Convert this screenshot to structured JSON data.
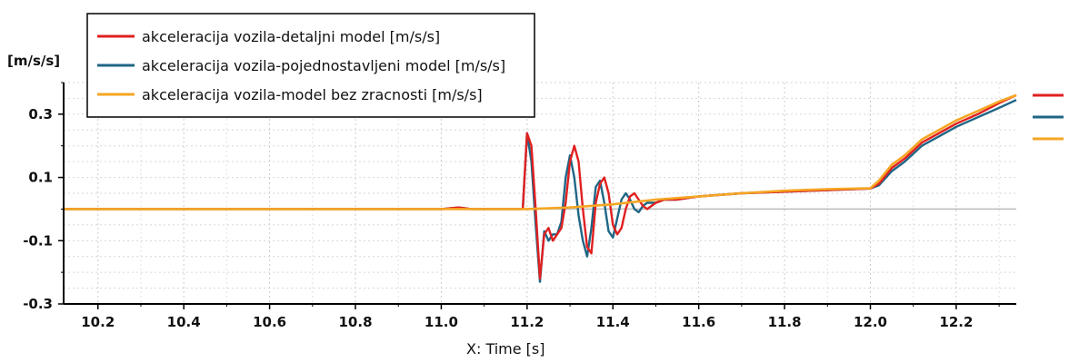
{
  "chart_data": {
    "type": "line",
    "ylabel": "[m/s/s]",
    "xlabel": "X: Time [s]",
    "xlim": [
      10.12,
      12.34
    ],
    "ylim": [
      -0.3,
      0.4
    ],
    "x_ticks": [
      10.2,
      10.4,
      10.6,
      10.8,
      11.0,
      11.2,
      11.4,
      11.6,
      11.8,
      12.0,
      12.2
    ],
    "x_tick_labels": [
      "10.2",
      "10.4",
      "10.6",
      "10.8",
      "11.0",
      "11.2",
      "11.4",
      "11.6",
      "11.8",
      "12.0",
      "12.2"
    ],
    "y_ticks": [
      -0.3,
      -0.1,
      0.1,
      0.3
    ],
    "y_tick_labels": [
      "-0.3",
      "-0.1",
      "0.1",
      "0.3"
    ],
    "grid": true,
    "legend_position": "top-left",
    "series": [
      {
        "name": "akceleracija vozila-detaljni model [m/s/s]",
        "color": "#e02020",
        "x": [
          10.12,
          11.0,
          11.04,
          11.07,
          11.1,
          11.19,
          11.2,
          11.21,
          11.22,
          11.23,
          11.24,
          11.25,
          11.26,
          11.27,
          11.28,
          11.29,
          11.3,
          11.31,
          11.32,
          11.33,
          11.34,
          11.35,
          11.36,
          11.37,
          11.38,
          11.39,
          11.4,
          11.41,
          11.42,
          11.43,
          11.44,
          11.45,
          11.46,
          11.47,
          11.48,
          11.5,
          11.52,
          11.55,
          11.6,
          11.7,
          11.8,
          11.9,
          12.0,
          12.02,
          12.05,
          12.08,
          12.12,
          12.16,
          12.2,
          12.25,
          12.3,
          12.34
        ],
        "y": [
          0.0,
          0.0,
          0.005,
          0.0,
          0.0,
          0.0,
          0.24,
          0.2,
          0.0,
          -0.22,
          -0.08,
          -0.06,
          -0.1,
          -0.08,
          -0.06,
          0.02,
          0.15,
          0.2,
          0.15,
          0.0,
          -0.12,
          -0.14,
          0.02,
          0.08,
          0.1,
          0.05,
          -0.05,
          -0.08,
          -0.06,
          0.0,
          0.04,
          0.05,
          0.03,
          0.01,
          0.0,
          0.02,
          0.03,
          0.03,
          0.04,
          0.05,
          0.055,
          0.06,
          0.065,
          0.08,
          0.13,
          0.16,
          0.21,
          0.24,
          0.27,
          0.3,
          0.335,
          0.36
        ]
      },
      {
        "name": "akceleracija vozila-pojednostavljeni model [m/s/s]",
        "color": "#1f6685",
        "x": [
          10.12,
          11.0,
          11.04,
          11.07,
          11.1,
          11.19,
          11.2,
          11.21,
          11.22,
          11.23,
          11.24,
          11.25,
          11.26,
          11.27,
          11.28,
          11.29,
          11.3,
          11.31,
          11.32,
          11.33,
          11.34,
          11.35,
          11.36,
          11.37,
          11.38,
          11.39,
          11.4,
          11.41,
          11.42,
          11.43,
          11.44,
          11.45,
          11.46,
          11.47,
          11.48,
          11.5,
          11.52,
          11.55,
          11.6,
          11.7,
          11.8,
          11.9,
          12.0,
          12.02,
          12.05,
          12.08,
          12.12,
          12.16,
          12.2,
          12.25,
          12.3,
          12.34
        ],
        "y": [
          0.0,
          0.0,
          0.005,
          0.0,
          0.0,
          0.0,
          0.24,
          0.15,
          -0.05,
          -0.23,
          -0.07,
          -0.1,
          -0.08,
          -0.08,
          -0.04,
          0.1,
          0.17,
          0.1,
          -0.02,
          -0.1,
          -0.15,
          -0.06,
          0.07,
          0.09,
          0.02,
          -0.07,
          -0.09,
          -0.03,
          0.03,
          0.05,
          0.03,
          0.0,
          -0.01,
          0.01,
          0.02,
          0.02,
          0.03,
          0.03,
          0.04,
          0.05,
          0.055,
          0.06,
          0.065,
          0.075,
          0.12,
          0.15,
          0.2,
          0.23,
          0.26,
          0.29,
          0.32,
          0.345
        ]
      },
      {
        "name": "akceleracija vozila-model bez zracnosti [m/s/s]",
        "color": "#f5a623",
        "x": [
          10.12,
          11.0,
          11.2,
          11.3,
          11.4,
          11.5,
          11.6,
          11.7,
          11.8,
          11.9,
          12.0,
          12.02,
          12.05,
          12.08,
          12.12,
          12.16,
          12.2,
          12.25,
          12.3,
          12.34
        ],
        "y": [
          0.0,
          0.0,
          0.0,
          0.005,
          0.015,
          0.03,
          0.04,
          0.05,
          0.058,
          0.063,
          0.066,
          0.09,
          0.14,
          0.17,
          0.22,
          0.25,
          0.28,
          0.31,
          0.34,
          0.36
        ]
      }
    ]
  }
}
